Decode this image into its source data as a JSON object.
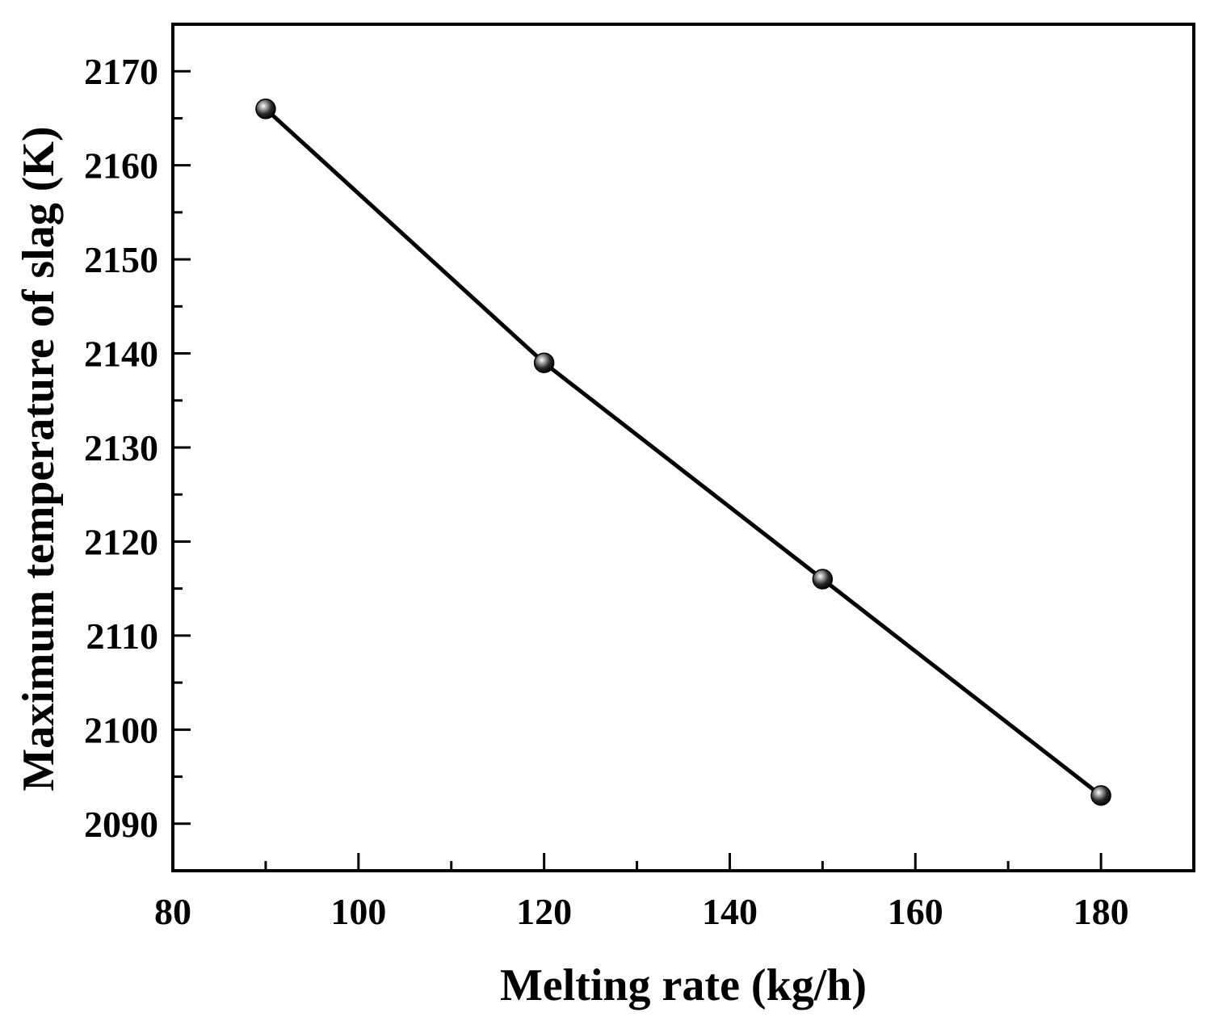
{
  "chart_data": {
    "type": "line",
    "title": "",
    "xlabel": "Melting rate (kg/h)",
    "ylabel": "Maximum temperature of slag (K)",
    "xlim": [
      80,
      190
    ],
    "ylim": [
      2085,
      2175
    ],
    "xticks": [
      80,
      100,
      120,
      140,
      160,
      180
    ],
    "xminor": [
      90,
      110,
      130,
      150,
      170
    ],
    "yticks": [
      2090,
      2100,
      2110,
      2120,
      2130,
      2140,
      2150,
      2160,
      2170
    ],
    "yminor": [
      2095,
      2105,
      2115,
      2125,
      2135,
      2145,
      2155,
      2165
    ],
    "grid": false,
    "series": [
      {
        "name": "Maximum temperature",
        "color": "#000000",
        "marker": "sphere",
        "x": [
          90,
          120,
          150,
          180
        ],
        "values": [
          2166,
          2139,
          2116,
          2093
        ]
      }
    ]
  }
}
